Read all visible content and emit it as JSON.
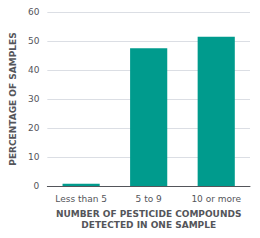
{
  "chart_data": {
    "type": "bar",
    "categories": [
      "Less than 5",
      "5 to 9",
      "10 or more"
    ],
    "values": [
      0.8,
      47.5,
      51.5
    ],
    "color": "#009B8D",
    "xlabel": "NUMBER OF PESTICIDE COMPOUNDS\nDETECTED IN ONE SAMPLE",
    "ylabel": "PERCENTAGE OF SAMPLES",
    "ylim": [
      0,
      60
    ],
    "yticks": [
      0,
      10,
      20,
      30,
      40,
      50,
      60
    ],
    "grid": true
  }
}
